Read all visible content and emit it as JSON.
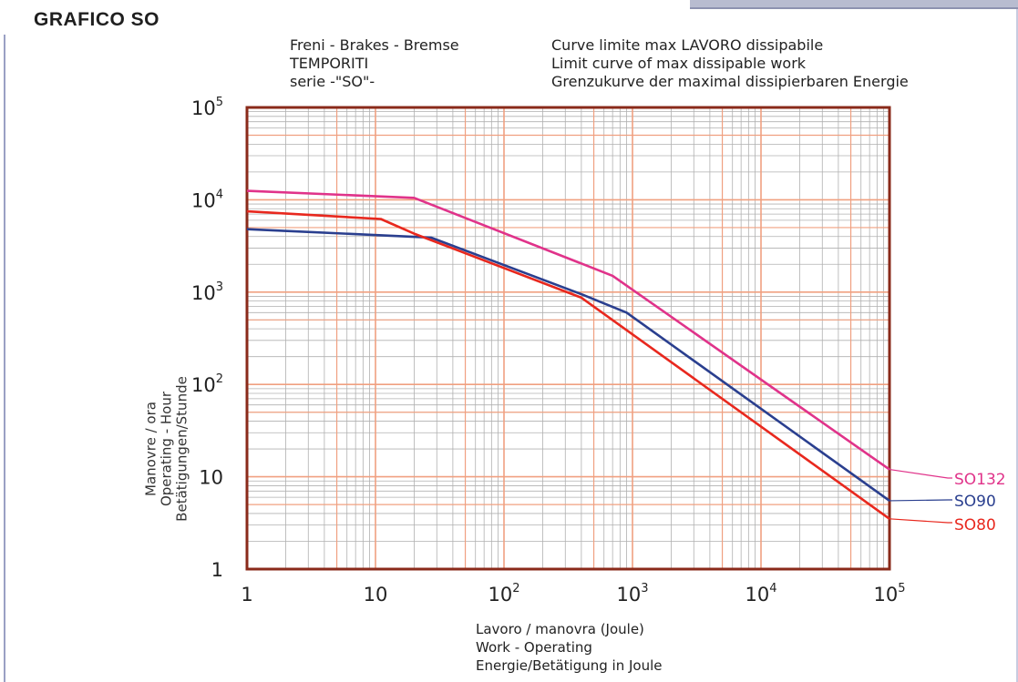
{
  "page": {
    "title": "GRAFICO SO"
  },
  "notes": {
    "left": [
      "Freni - Brakes - Bremse",
      "TEMPORITI",
      "serie -\"SO\"-"
    ],
    "right": [
      "Curve limite max LAVORO dissipabile",
      "Limit curve of max dissipable work",
      "Grenzukurve der maximal dissipierbaren Energie"
    ]
  },
  "chart_data": {
    "type": "line",
    "xscale": "log",
    "yscale": "log",
    "xlim": [
      1,
      100000
    ],
    "ylim": [
      1,
      100000
    ],
    "grid": true,
    "xlabel": [
      "Lavoro / manovra (Joule)",
      "Work - Operating",
      "Energie/Betätigung in Joule"
    ],
    "ylabel": [
      "Manovre / ora",
      "Operating - Hour",
      "Betätigungen/Stunde"
    ],
    "xticks": [
      {
        "value": 1,
        "base": "1",
        "exp": ""
      },
      {
        "value": 10,
        "base": "10",
        "exp": ""
      },
      {
        "value": 100,
        "base": "10",
        "exp": "2"
      },
      {
        "value": 1000,
        "base": "10",
        "exp": "3"
      },
      {
        "value": 10000,
        "base": "10",
        "exp": "4"
      },
      {
        "value": 100000,
        "base": "10",
        "exp": "5"
      }
    ],
    "yticks": [
      {
        "value": 1,
        "base": "1",
        "exp": ""
      },
      {
        "value": 10,
        "base": "10",
        "exp": ""
      },
      {
        "value": 100,
        "base": "10",
        "exp": "2"
      },
      {
        "value": 1000,
        "base": "10",
        "exp": "3"
      },
      {
        "value": 10000,
        "base": "10",
        "exp": "4"
      },
      {
        "value": 100000,
        "base": "10",
        "exp": "5"
      }
    ],
    "series": [
      {
        "name": "SO132",
        "color": "#e0338a",
        "x": [
          1,
          20,
          700,
          100000
        ],
        "y": [
          12500,
          10500,
          1500,
          12
        ]
      },
      {
        "name": "SO90",
        "color": "#2a3f8f",
        "x": [
          1,
          27,
          400,
          900,
          100000
        ],
        "y": [
          4800,
          3900,
          950,
          600,
          5.5
        ]
      },
      {
        "name": "SO80",
        "color": "#e8281e",
        "x": [
          1,
          11,
          20,
          400,
          100000
        ],
        "y": [
          7500,
          6200,
          4300,
          870,
          3.5
        ]
      }
    ],
    "colors": {
      "frame": "#8a2a1a",
      "major_grid": "#f0a080",
      "minor_grid": "#b0b0b0"
    }
  }
}
